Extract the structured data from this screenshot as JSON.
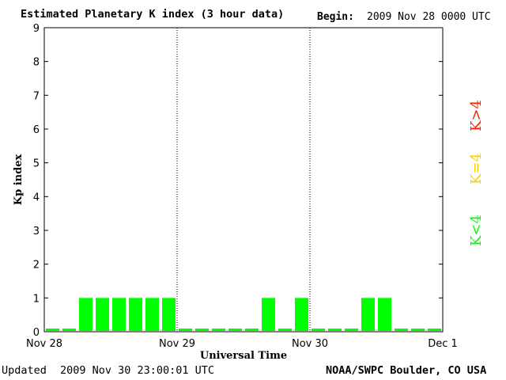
{
  "header": {
    "title": "Estimated Planetary K index (3 hour data)",
    "begin_label": "Begin:",
    "begin_value": "2009 Nov 28 0000 UTC"
  },
  "footer": {
    "updated_label": "Updated",
    "updated_value": "2009 Nov 30 23:00:01 UTC",
    "credit": "NOAA/SWPC Boulder, CO USA"
  },
  "legend": [
    {
      "label": "K<4",
      "color": "#00ff00"
    },
    {
      "label": "K=4",
      "color": "#ffd000"
    },
    {
      "label": "K>4",
      "color": "#ff2000"
    }
  ],
  "chart_data": {
    "type": "bar",
    "title": "Estimated Planetary K index (3 hour data)",
    "xlabel": "Universal Time",
    "ylabel": "Kp index",
    "ylim": [
      0,
      9
    ],
    "yticks": [
      0,
      1,
      2,
      3,
      4,
      5,
      6,
      7,
      8,
      9
    ],
    "xtick_labels": [
      "Nov 28",
      "Nov 29",
      "Nov 30",
      "Dec 1"
    ],
    "day_dividers": [
      "Nov 29",
      "Nov 30"
    ],
    "grid": false,
    "bar_color": "#00ff00",
    "interval_hours": 3,
    "categories": [
      "Nov 28 00",
      "Nov 28 03",
      "Nov 28 06",
      "Nov 28 09",
      "Nov 28 12",
      "Nov 28 15",
      "Nov 28 18",
      "Nov 28 21",
      "Nov 29 00",
      "Nov 29 03",
      "Nov 29 06",
      "Nov 29 09",
      "Nov 29 12",
      "Nov 29 15",
      "Nov 29 18",
      "Nov 29 21",
      "Nov 30 00",
      "Nov 30 03",
      "Nov 30 06",
      "Nov 30 09",
      "Nov 30 12",
      "Nov 30 15",
      "Nov 30 18",
      "Nov 30 21"
    ],
    "values": [
      0,
      0,
      1,
      1,
      1,
      1,
      1,
      1,
      0,
      0,
      0,
      0,
      0,
      1,
      0,
      1,
      0,
      0,
      0,
      1,
      1,
      0,
      0,
      0
    ]
  }
}
